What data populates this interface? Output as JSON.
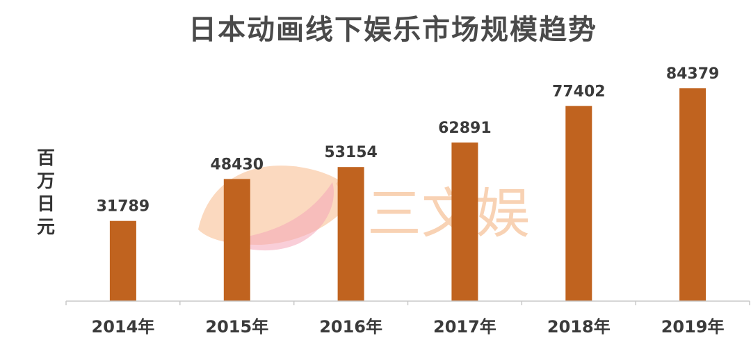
{
  "chart_data": {
    "type": "bar",
    "title": "日本动画线下娱乐市场规模趋势",
    "ylabel": "百万日元",
    "xlabel": "",
    "categories": [
      "2014年",
      "2015年",
      "2016年",
      "2017年",
      "2018年",
      "2019年"
    ],
    "values": [
      31789,
      48430,
      53154,
      62891,
      77402,
      84379
    ],
    "data_labels": [
      "31789",
      "48430",
      "53154",
      "62891",
      "77402",
      "84379"
    ],
    "ylim": [
      0,
      84379
    ],
    "grid": false,
    "legend": "none",
    "colors": {
      "bar": "#c0631f",
      "axis": "#c8c8c8",
      "title": "#4a4a4a",
      "text": "#3a3a3a"
    }
  },
  "watermark": {
    "text": "三文娱",
    "colors": {
      "orange": "#f7b98a",
      "pink": "#f4a6b8"
    }
  }
}
